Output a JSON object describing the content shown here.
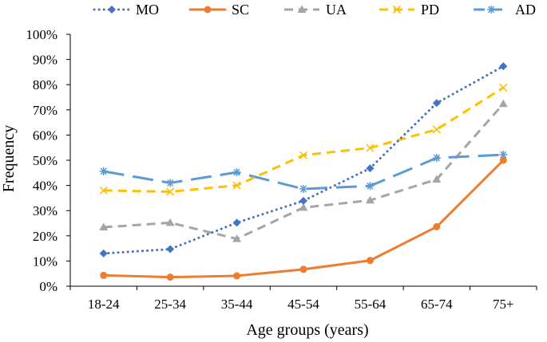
{
  "chart_data": {
    "type": "line",
    "title": "",
    "xlabel": "Age groups (years)",
    "ylabel": "Frequency",
    "categories": [
      "18-24",
      "25-34",
      "35-44",
      "45-54",
      "55-64",
      "65-74",
      "75+"
    ],
    "ylim": [
      0,
      100
    ],
    "yticks": [
      0,
      10,
      20,
      30,
      40,
      50,
      60,
      70,
      80,
      90,
      100
    ],
    "ytick_labels": [
      "0%",
      "10%",
      "20%",
      "30%",
      "40%",
      "50%",
      "60%",
      "70%",
      "80%",
      "90%",
      "100%"
    ],
    "grid": false,
    "legend_position": "top",
    "series": [
      {
        "name": "MO",
        "color": "#4472C4",
        "dash": "dotted",
        "marker": "diamond",
        "values": [
          13,
          14.7,
          25.2,
          33.9,
          46.8,
          72.7,
          87.3
        ]
      },
      {
        "name": "SC",
        "color": "#ED7D31",
        "dash": "solid",
        "marker": "circle",
        "values": [
          4.3,
          3.6,
          4.1,
          6.7,
          10.2,
          23.6,
          50
        ]
      },
      {
        "name": "UA",
        "color": "#A5A5A5",
        "dash": "dashed",
        "marker": "triangle",
        "values": [
          23.4,
          25.2,
          18.8,
          31.2,
          34.1,
          42.4,
          72.4
        ]
      },
      {
        "name": "PD",
        "color": "#FFC000",
        "dash": "dashed",
        "marker": "x",
        "values": [
          38,
          37.5,
          40,
          52,
          54.9,
          62.2,
          78.8
        ]
      },
      {
        "name": "AD",
        "color": "#5B9BD5",
        "dash": "longdash",
        "marker": "star",
        "values": [
          45.6,
          41,
          45.2,
          38.6,
          39.8,
          50.9,
          52.2
        ]
      }
    ]
  }
}
